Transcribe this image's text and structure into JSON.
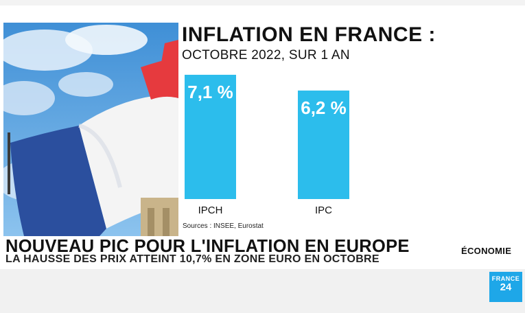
{
  "title": "INFLATION EN FRANCE :",
  "subtitle": "OCTOBRE 2022, SUR 1 AN",
  "source": "Sources : INSEE, Eurostat",
  "headline": "NOUVEAU PIC POUR L'INFLATION EN EUROPE",
  "subheadline": "LA HAUSSE DES PRIX ATTEINT 10,7% EN ZONE EURO EN OCTOBRE",
  "category": "ÉCONOMIE",
  "logo": {
    "top": "FRANCE",
    "num": "24"
  },
  "colors": {
    "bar": "#2cbdec",
    "bar_text": "#ffffff",
    "flag_blue": "#2b4f9e",
    "flag_red": "#e63a3e",
    "logo": "#1ea7e8"
  },
  "chart_data": {
    "type": "bar",
    "categories": [
      "IPCH",
      "IPC"
    ],
    "values": [
      7.1,
      6.2
    ],
    "labels": [
      "7,1 %",
      "6,2 %"
    ],
    "title": "INFLATION EN FRANCE :",
    "subtitle": "OCTOBRE 2022, SUR 1 AN",
    "xlabel": "",
    "ylabel": "",
    "grid": false
  }
}
